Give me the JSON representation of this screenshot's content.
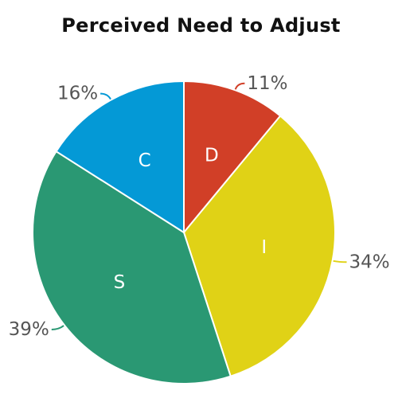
{
  "chart_data": {
    "type": "pie",
    "title": "Perceived Need to Adjust",
    "start_angle_deg": 0,
    "direction": "clockwise",
    "slices": [
      {
        "label": "D",
        "value": 11,
        "display": "11%",
        "color": "#d13f27"
      },
      {
        "label": "I",
        "value": 34,
        "display": "34%",
        "color": "#e0d216"
      },
      {
        "label": "S",
        "value": 39,
        "display": "39%",
        "color": "#2a9873"
      },
      {
        "label": "C",
        "value": 16,
        "display": "16%",
        "color": "#0499d6"
      }
    ]
  }
}
